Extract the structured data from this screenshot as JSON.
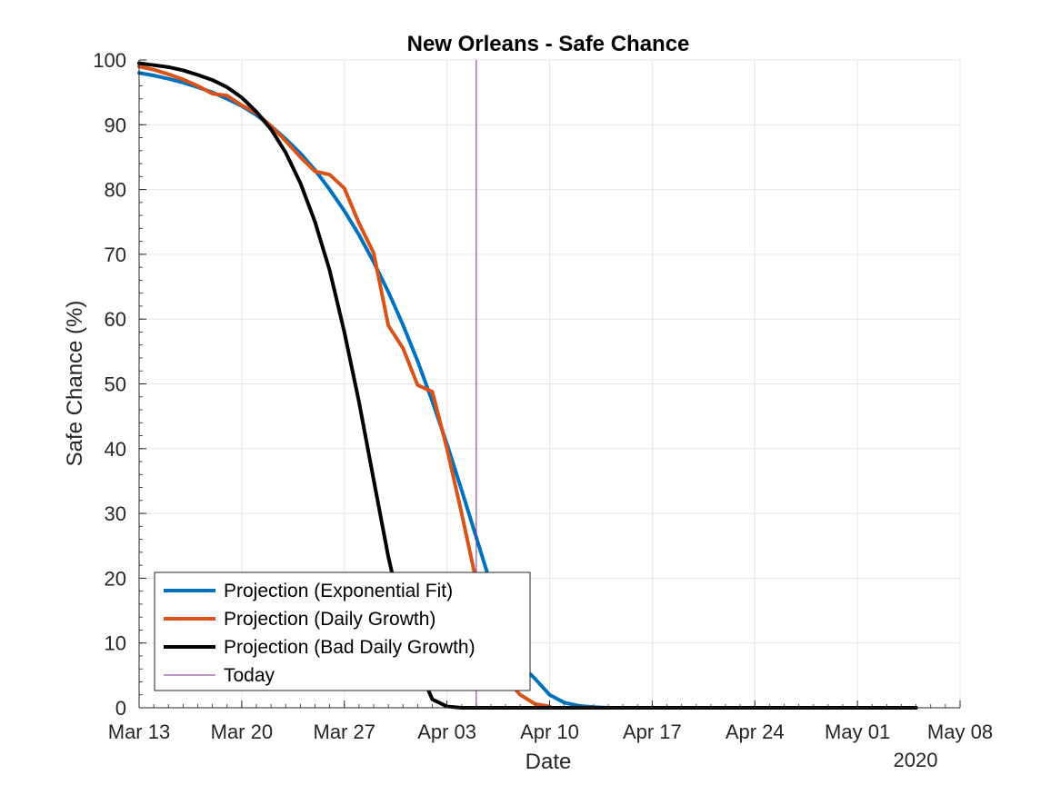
{
  "chart_data": {
    "type": "line",
    "title": "New Orleans - Safe Chance",
    "xlabel": "Date",
    "ylabel": "Safe Chance (%)",
    "x_secondary_label": "2020",
    "xlim": [
      "2020-03-13",
      "2020-05-08"
    ],
    "ylim": [
      0,
      100
    ],
    "grid": true,
    "legend_position": "bottom-left",
    "x_ticks": [
      {
        "date": "2020-03-13",
        "label": "Mar 13"
      },
      {
        "date": "2020-03-20",
        "label": "Mar 20"
      },
      {
        "date": "2020-03-27",
        "label": "Mar 27"
      },
      {
        "date": "2020-04-03",
        "label": "Apr 03"
      },
      {
        "date": "2020-04-10",
        "label": "Apr 10"
      },
      {
        "date": "2020-04-17",
        "label": "Apr 17"
      },
      {
        "date": "2020-04-24",
        "label": "Apr 24"
      },
      {
        "date": "2020-05-01",
        "label": "May 01"
      },
      {
        "date": "2020-05-08",
        "label": "May 08"
      }
    ],
    "y_ticks": [
      0,
      10,
      20,
      30,
      40,
      50,
      60,
      70,
      80,
      90,
      100
    ],
    "reference_lines": [
      {
        "name": "Today",
        "date": "2020-04-05",
        "color": "#7E2F8E"
      }
    ],
    "series": [
      {
        "name": "Projection (Exponential Fit)",
        "color": "#0072BD",
        "points": [
          [
            "2020-03-13",
            98
          ],
          [
            "2020-03-14",
            97.6
          ],
          [
            "2020-03-15",
            97.1
          ],
          [
            "2020-03-16",
            96.5
          ],
          [
            "2020-03-17",
            95.8
          ],
          [
            "2020-03-18",
            95
          ],
          [
            "2020-03-19",
            94
          ],
          [
            "2020-03-20",
            92.9
          ],
          [
            "2020-03-21",
            91.5
          ],
          [
            "2020-03-22",
            89.8
          ],
          [
            "2020-03-23",
            87.8
          ],
          [
            "2020-03-24",
            85.6
          ],
          [
            "2020-03-25",
            83
          ],
          [
            "2020-03-26",
            80
          ],
          [
            "2020-03-27",
            76.7
          ],
          [
            "2020-03-28",
            73
          ],
          [
            "2020-03-29",
            68.8
          ],
          [
            "2020-03-30",
            64.2
          ],
          [
            "2020-03-31",
            59.1
          ],
          [
            "2020-04-01",
            53.5
          ],
          [
            "2020-04-02",
            47.3
          ],
          [
            "2020-04-03",
            40.7
          ],
          [
            "2020-04-04",
            33.6
          ],
          [
            "2020-04-05",
            26.3
          ],
          [
            "2020-04-06",
            19
          ],
          [
            "2020-04-07",
            12.2
          ],
          [
            "2020-04-08",
            6.7
          ],
          [
            "2020-04-09",
            4.5
          ],
          [
            "2020-04-10",
            2
          ],
          [
            "2020-04-11",
            0.8
          ],
          [
            "2020-04-12",
            0.3
          ],
          [
            "2020-04-13",
            0.1
          ],
          [
            "2020-04-14",
            0
          ],
          [
            "2020-05-05",
            0
          ]
        ]
      },
      {
        "name": "Projection (Daily Growth)",
        "color": "#D95319",
        "points": [
          [
            "2020-03-13",
            99
          ],
          [
            "2020-03-14",
            98.5
          ],
          [
            "2020-03-15",
            97.8
          ],
          [
            "2020-03-16",
            97
          ],
          [
            "2020-03-17",
            96
          ],
          [
            "2020-03-18",
            94.8
          ],
          [
            "2020-03-19",
            94.5
          ],
          [
            "2020-03-20",
            93
          ],
          [
            "2020-03-21",
            91.8
          ],
          [
            "2020-03-22",
            89.8
          ],
          [
            "2020-03-23",
            87.5
          ],
          [
            "2020-03-24",
            85
          ],
          [
            "2020-03-25",
            82.8
          ],
          [
            "2020-03-26",
            82.3
          ],
          [
            "2020-03-27",
            80.2
          ],
          [
            "2020-03-28",
            74.8
          ],
          [
            "2020-03-29",
            70.2
          ],
          [
            "2020-03-30",
            59
          ],
          [
            "2020-03-31",
            55.5
          ],
          [
            "2020-04-01",
            49.8
          ],
          [
            "2020-04-02",
            48.8
          ],
          [
            "2020-04-03",
            40
          ],
          [
            "2020-04-04",
            30
          ],
          [
            "2020-04-05",
            19.5
          ],
          [
            "2020-04-06",
            12
          ],
          [
            "2020-04-07",
            4.5
          ],
          [
            "2020-04-08",
            2
          ],
          [
            "2020-04-09",
            0.6
          ],
          [
            "2020-04-10",
            0.2
          ]
        ]
      },
      {
        "name": "Projection (Bad Daily Growth)",
        "color": "#000000",
        "points": [
          [
            "2020-03-13",
            99.5
          ],
          [
            "2020-03-14",
            99.2
          ],
          [
            "2020-03-15",
            98.9
          ],
          [
            "2020-03-16",
            98.4
          ],
          [
            "2020-03-17",
            97.7
          ],
          [
            "2020-03-18",
            96.9
          ],
          [
            "2020-03-19",
            95.8
          ],
          [
            "2020-03-20",
            94.2
          ],
          [
            "2020-03-21",
            92
          ],
          [
            "2020-03-22",
            89.3
          ],
          [
            "2020-03-23",
            85.7
          ],
          [
            "2020-03-24",
            81
          ],
          [
            "2020-03-25",
            75
          ],
          [
            "2020-03-26",
            67.5
          ],
          [
            "2020-03-27",
            58
          ],
          [
            "2020-03-28",
            47.2
          ],
          [
            "2020-03-29",
            35.2
          ],
          [
            "2020-03-30",
            23.3
          ],
          [
            "2020-03-31",
            13.5
          ],
          [
            "2020-04-01",
            6.5
          ],
          [
            "2020-04-02",
            1.3
          ],
          [
            "2020-04-03",
            0.2
          ],
          [
            "2020-04-04",
            0
          ],
          [
            "2020-05-05",
            0
          ]
        ]
      }
    ]
  }
}
